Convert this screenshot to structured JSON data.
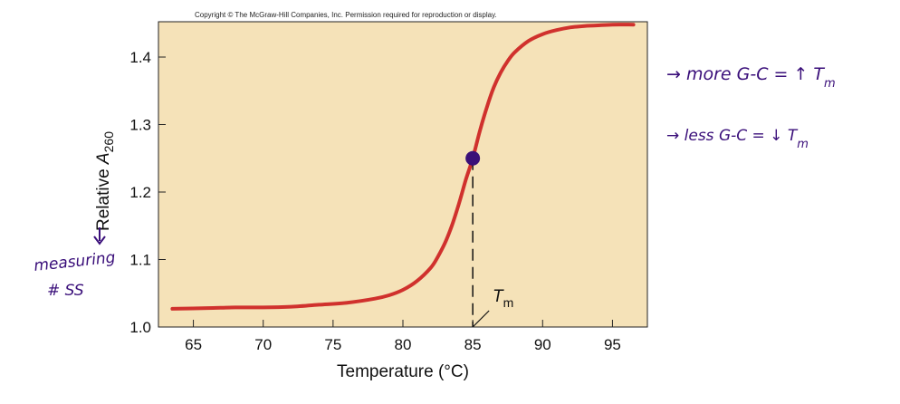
{
  "copyright": "Copyright © The McGraw-Hill Companies, Inc. Permission required for reproduction or display.",
  "chart_data": {
    "type": "line",
    "title": "",
    "xlabel": "Temperature (°C)",
    "ylabel_prefix": "Relative ",
    "ylabel_var": "A",
    "ylabel_sub": "260",
    "xlim": [
      62.5,
      97.5
    ],
    "ylim": [
      1.0,
      1.46
    ],
    "xticks": [
      65,
      70,
      75,
      80,
      85,
      90,
      95
    ],
    "yticks": [
      1.0,
      1.1,
      1.2,
      1.3,
      1.4
    ],
    "xtick_labels": [
      "65",
      "70",
      "75",
      "80",
      "85",
      "90",
      "95"
    ],
    "ytick_labels": [
      "1.0",
      "1.1",
      "1.2",
      "1.3",
      "1.4"
    ],
    "series": [
      {
        "name": "melting curve",
        "color": "#d0312d",
        "x": [
          63.5,
          66,
          68,
          70,
          72,
          74,
          76,
          78,
          79,
          80,
          81,
          82,
          82.5,
          83,
          83.5,
          84,
          84.5,
          85,
          85.5,
          86,
          86.5,
          87,
          87.5,
          88,
          89,
          90,
          91,
          92,
          93,
          94,
          95,
          96.5
        ],
        "y": [
          1.027,
          1.028,
          1.029,
          1.029,
          1.03,
          1.033,
          1.036,
          1.042,
          1.047,
          1.055,
          1.068,
          1.088,
          1.104,
          1.124,
          1.15,
          1.182,
          1.218,
          1.25,
          1.29,
          1.325,
          1.355,
          1.377,
          1.394,
          1.407,
          1.424,
          1.434,
          1.44,
          1.444,
          1.446,
          1.447,
          1.448,
          1.448
        ]
      }
    ],
    "tm_point": {
      "x": 85,
      "y": 1.25,
      "color": "#3a1078"
    },
    "tm_label_var": "T",
    "tm_label_sub": "m"
  },
  "annotations": {
    "arrow_label": "measuring",
    "arrow_label_2": "# SS",
    "note_more": "→ more G-C = ↑ T",
    "note_less": "→ less G-C  =  ↓ T",
    "note_sub": "m",
    "ink_color": "#3a0f7a"
  }
}
